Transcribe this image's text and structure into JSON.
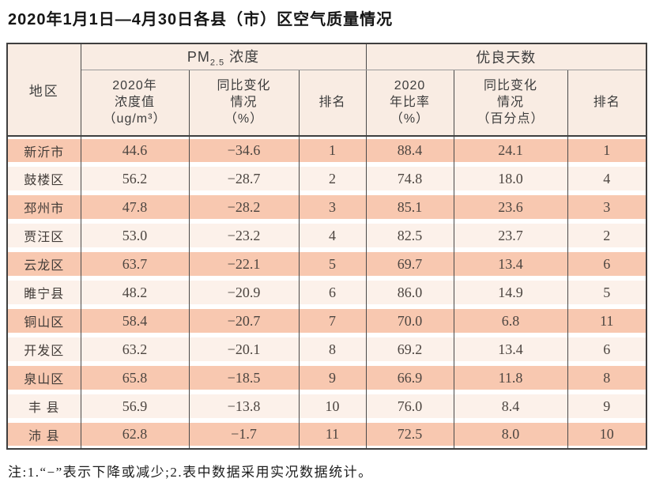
{
  "title": "2020年1月1日—4月30日各县（市）区空气质量情况",
  "note": "注:1.“−”表示下降或减少;2.表中数据采用实况数据统计。",
  "colors": {
    "row_odd_bg": "#f8c8b0",
    "row_even_bg": "#fcf1ea",
    "header_bg": "#f9ece3",
    "border_dark": "#3f3f3f",
    "border_gray": "#9a9a9a",
    "text_dark": "#4c4540"
  },
  "table": {
    "headers": {
      "region": "地区",
      "pm_group": {
        "prefix": "PM",
        "subscript": "2.5",
        "suffix": " 浓度"
      },
      "good_group": "优良天数",
      "pm_value": "2020年\n浓度值\n（ug/m³）",
      "pm_change": "同比变化\n情况\n（%）",
      "pm_rank": "排名",
      "gd_ratio": "2020\n年比率\n（%）",
      "gd_change": "同比变化\n情况\n（百分点）",
      "gd_rank": "排名"
    },
    "rows": [
      {
        "region": "新沂市",
        "pm_value": "44.6",
        "pm_change": "−34.6",
        "pm_rank": "1",
        "gd_ratio": "88.4",
        "gd_change": "24.1",
        "gd_rank": "1"
      },
      {
        "region": "鼓楼区",
        "pm_value": "56.2",
        "pm_change": "−28.7",
        "pm_rank": "2",
        "gd_ratio": "74.8",
        "gd_change": "18.0",
        "gd_rank": "4"
      },
      {
        "region": "邳州市",
        "pm_value": "47.8",
        "pm_change": "−28.2",
        "pm_rank": "3",
        "gd_ratio": "85.1",
        "gd_change": "23.6",
        "gd_rank": "3"
      },
      {
        "region": "贾汪区",
        "pm_value": "53.0",
        "pm_change": "−23.2",
        "pm_rank": "4",
        "gd_ratio": "82.5",
        "gd_change": "23.7",
        "gd_rank": "2"
      },
      {
        "region": "云龙区",
        "pm_value": "63.7",
        "pm_change": "−22.1",
        "pm_rank": "5",
        "gd_ratio": "69.7",
        "gd_change": "13.4",
        "gd_rank": "6"
      },
      {
        "region": "睢宁县",
        "pm_value": "48.2",
        "pm_change": "−20.9",
        "pm_rank": "6",
        "gd_ratio": "86.0",
        "gd_change": "14.9",
        "gd_rank": "5"
      },
      {
        "region": "铜山区",
        "pm_value": "58.4",
        "pm_change": "−20.7",
        "pm_rank": "7",
        "gd_ratio": "70.0",
        "gd_change": "6.8",
        "gd_rank": "11"
      },
      {
        "region": "开发区",
        "pm_value": "63.2",
        "pm_change": "−20.1",
        "pm_rank": "8",
        "gd_ratio": "69.2",
        "gd_change": "13.4",
        "gd_rank": "6"
      },
      {
        "region": "泉山区",
        "pm_value": "65.8",
        "pm_change": "−18.5",
        "pm_rank": "9",
        "gd_ratio": "66.9",
        "gd_change": "11.8",
        "gd_rank": "8"
      },
      {
        "region": "丰 县",
        "pm_value": "56.9",
        "pm_change": "−13.8",
        "pm_rank": "10",
        "gd_ratio": "76.0",
        "gd_change": "8.4",
        "gd_rank": "9"
      },
      {
        "region": "沛 县",
        "pm_value": "62.8",
        "pm_change": "−1.7",
        "pm_rank": "11",
        "gd_ratio": "72.5",
        "gd_change": "8.0",
        "gd_rank": "10"
      }
    ]
  }
}
